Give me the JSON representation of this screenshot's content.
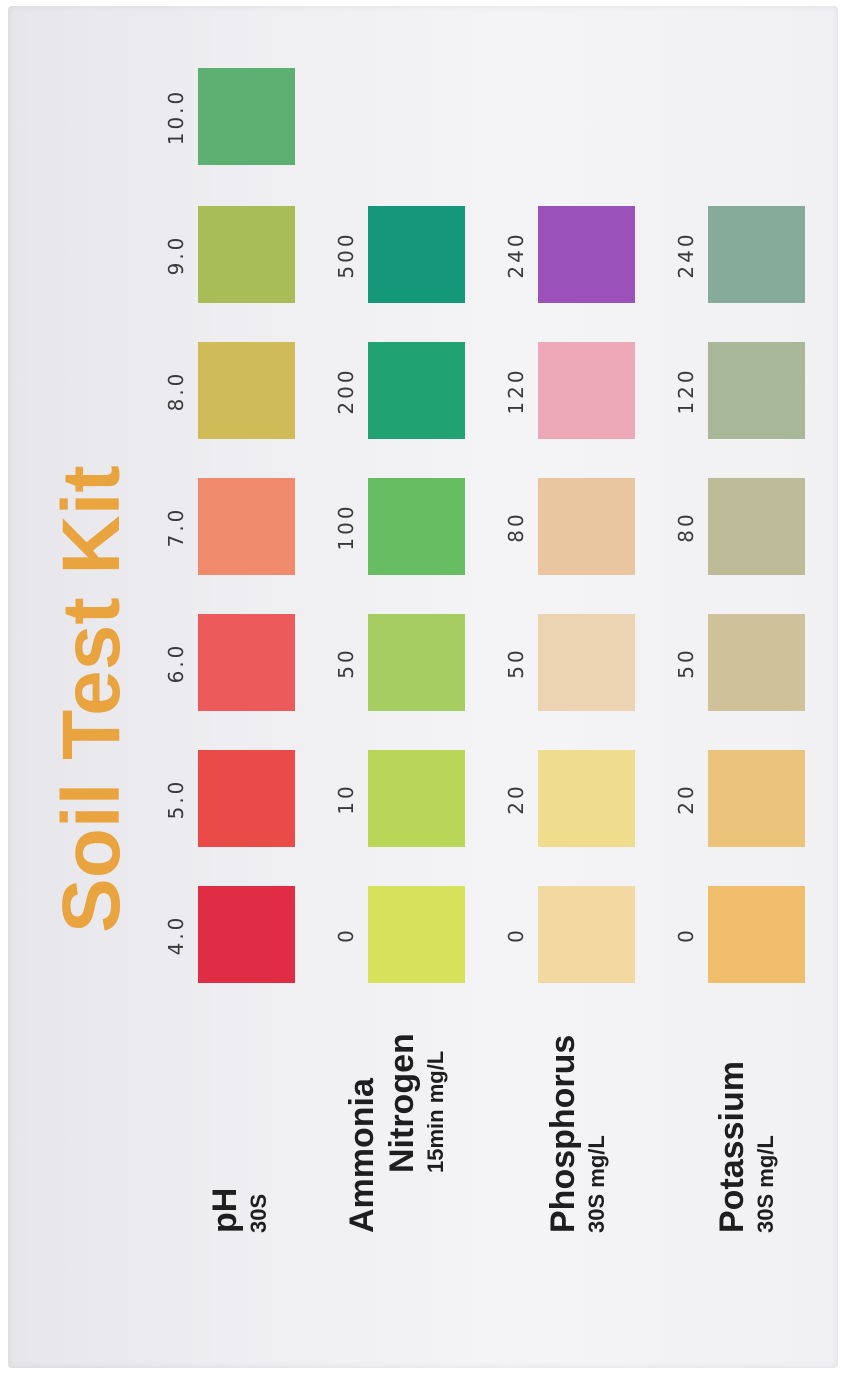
{
  "title": "Soil Test Kit",
  "rows": [
    {
      "label": "pH",
      "sub": "30S",
      "values": [
        "4.0",
        "5.0",
        "6.0",
        "7.0",
        "8.0",
        "9.0",
        "10.0"
      ],
      "colors": [
        "#e02d45",
        "#ea4b49",
        "#ec5a5b",
        "#ef8a6c",
        "#cfbb58",
        "#a8bd58",
        "#5daf72"
      ]
    },
    {
      "label": "Ammonia",
      "label2": "Nitrogen",
      "sub": "15min  mg/L",
      "values": [
        "0",
        "10",
        "50",
        "100",
        "200",
        "500"
      ],
      "colors": [
        "#d7e15c",
        "#b9d659",
        "#a5cd62",
        "#66bd62",
        "#20a272",
        "#15977a"
      ]
    },
    {
      "label": "Phosphorus",
      "sub": "30S  mg/L",
      "values": [
        "0",
        "20",
        "50",
        "80",
        "120",
        "240"
      ],
      "colors": [
        "#f2d9a2",
        "#f0dc8d",
        "#ecd3b1",
        "#e9c69f",
        "#eda8b8",
        "#9a51b9"
      ]
    },
    {
      "label": "Potassium",
      "sub": "30S  mg/L",
      "values": [
        "0",
        "20",
        "50",
        "80",
        "120",
        "240"
      ],
      "colors": [
        "#efbd6c",
        "#ebc37a",
        "#cfc29a",
        "#bebb98",
        "#a8b798",
        "#86ab9a"
      ]
    }
  ]
}
